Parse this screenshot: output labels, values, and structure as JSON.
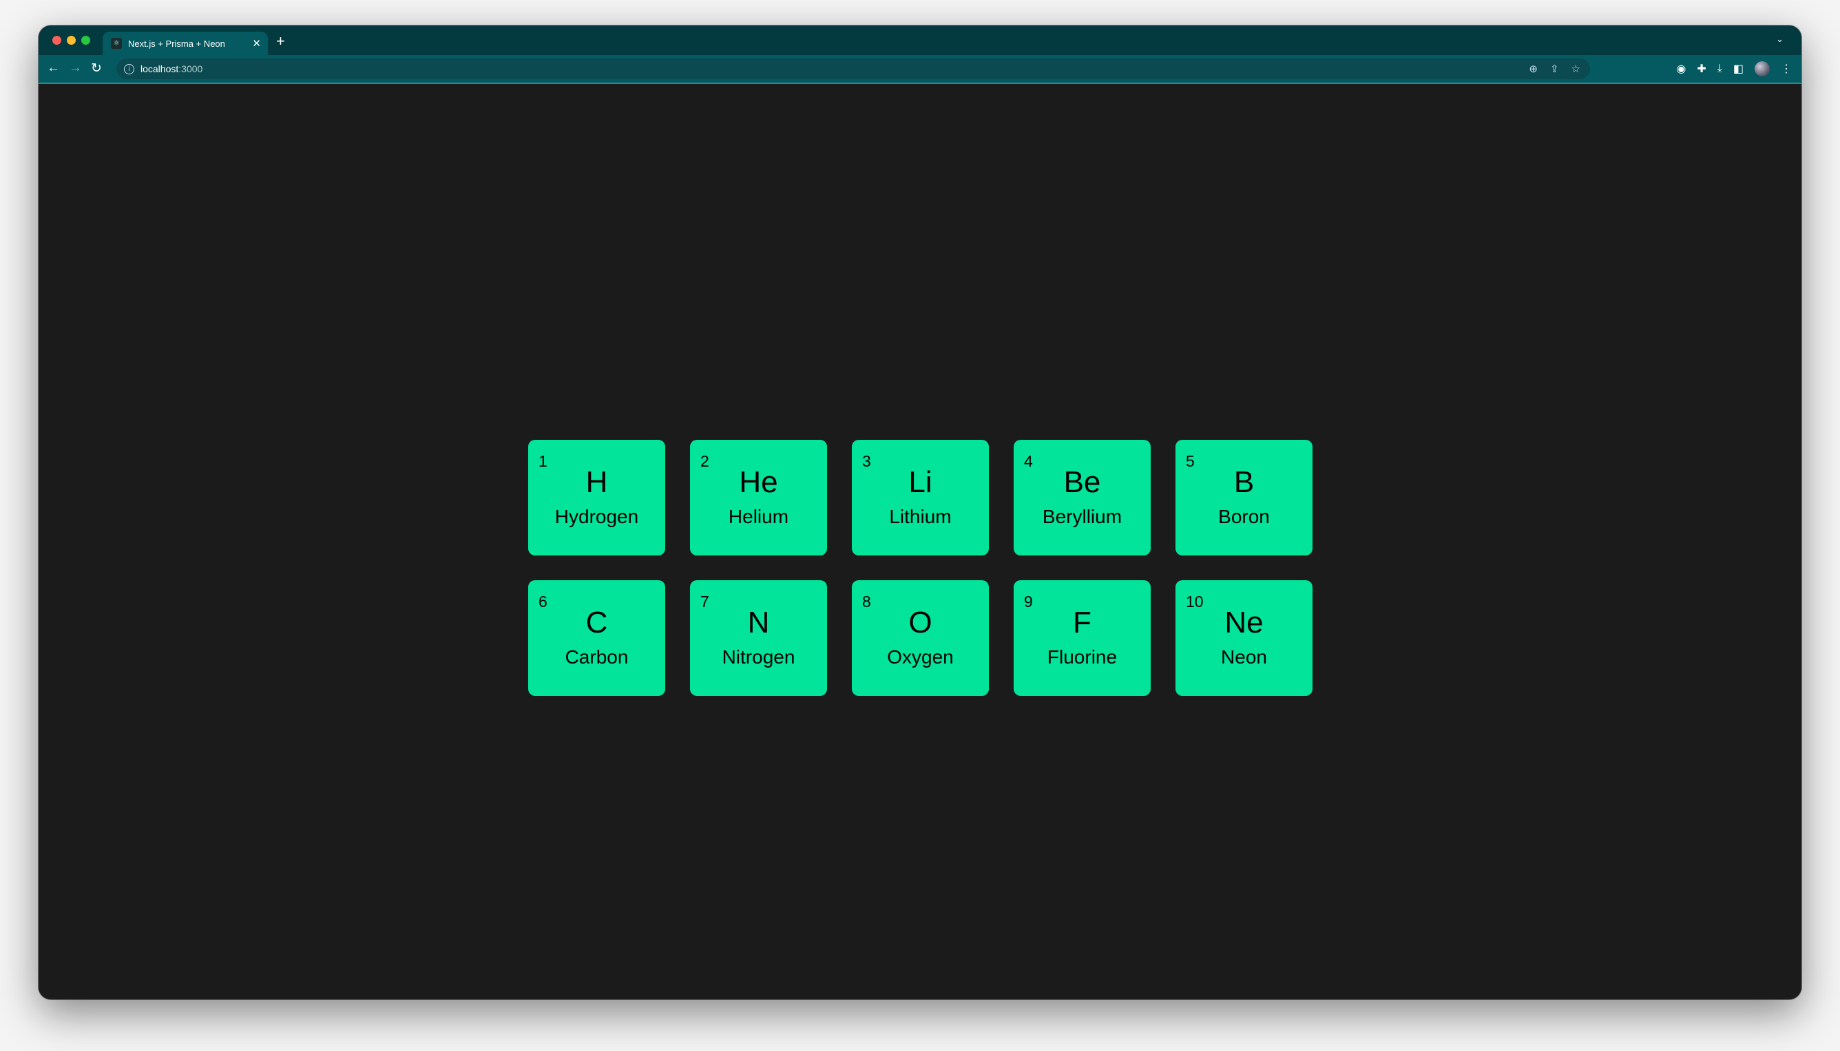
{
  "browser": {
    "tab_title": "Next.js + Prisma + Neon",
    "url_host": "localhost",
    "url_port": ":3000"
  },
  "colors": {
    "card": "#02e49a",
    "background": "#1b1b1b",
    "chrome": "#045a60"
  },
  "elements": [
    {
      "number": "1",
      "symbol": "H",
      "name": "Hydrogen"
    },
    {
      "number": "2",
      "symbol": "He",
      "name": "Helium"
    },
    {
      "number": "3",
      "symbol": "Li",
      "name": "Lithium"
    },
    {
      "number": "4",
      "symbol": "Be",
      "name": "Beryllium"
    },
    {
      "number": "5",
      "symbol": "B",
      "name": "Boron"
    },
    {
      "number": "6",
      "symbol": "C",
      "name": "Carbon"
    },
    {
      "number": "7",
      "symbol": "N",
      "name": "Nitrogen"
    },
    {
      "number": "8",
      "symbol": "O",
      "name": "Oxygen"
    },
    {
      "number": "9",
      "symbol": "F",
      "name": "Fluorine"
    },
    {
      "number": "10",
      "symbol": "Ne",
      "name": "Neon"
    }
  ]
}
